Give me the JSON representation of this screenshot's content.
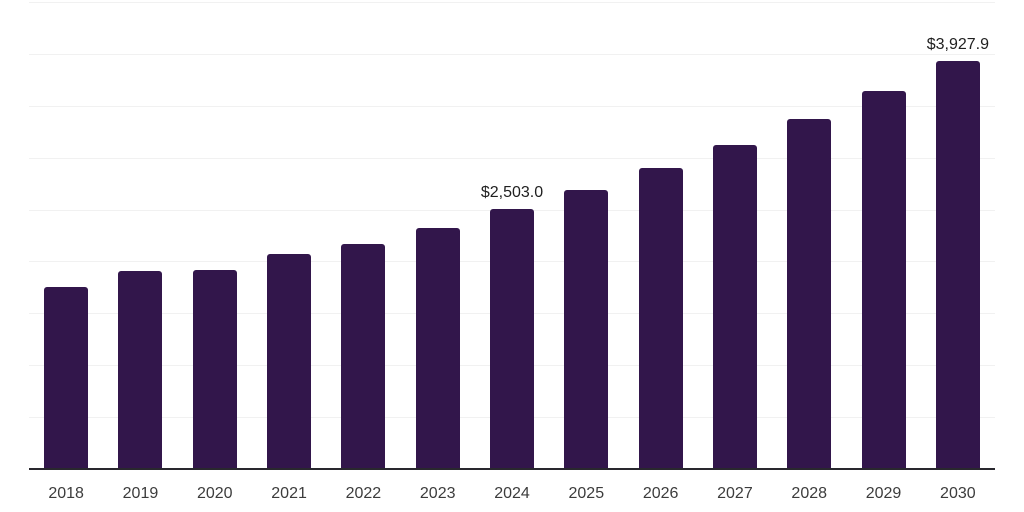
{
  "chart_style": {
    "background": "#ffffff",
    "bar_color": "#32164b",
    "gridline_color": "#f1f1f1",
    "axis_line_color": "#29282e",
    "tick_label_color": "#3c3c3c",
    "value_label_color": "#1f1f1f"
  },
  "chart_data": {
    "type": "bar",
    "title": "",
    "categories": [
      "2018",
      "2019",
      "2020",
      "2021",
      "2022",
      "2023",
      "2024",
      "2025",
      "2026",
      "2027",
      "2028",
      "2029",
      "2030"
    ],
    "values": [
      1758.2,
      1905.9,
      1919.3,
      2072.8,
      2165.0,
      2322.5,
      2503.0,
      2690.4,
      2900.9,
      3125.7,
      3369.9,
      3639.6,
      3927.9
    ],
    "data_labels": [
      "",
      "",
      "",
      "",
      "",
      "",
      "$2,503.0",
      "",
      "",
      "",
      "",
      "",
      "$3,927.9"
    ],
    "xlabel": "",
    "ylabel": "",
    "ylim": [
      0,
      4500
    ],
    "y_tick_step": 500,
    "grid": true,
    "gridline_count": 9,
    "legend": false,
    "currency_prefix": "$"
  }
}
